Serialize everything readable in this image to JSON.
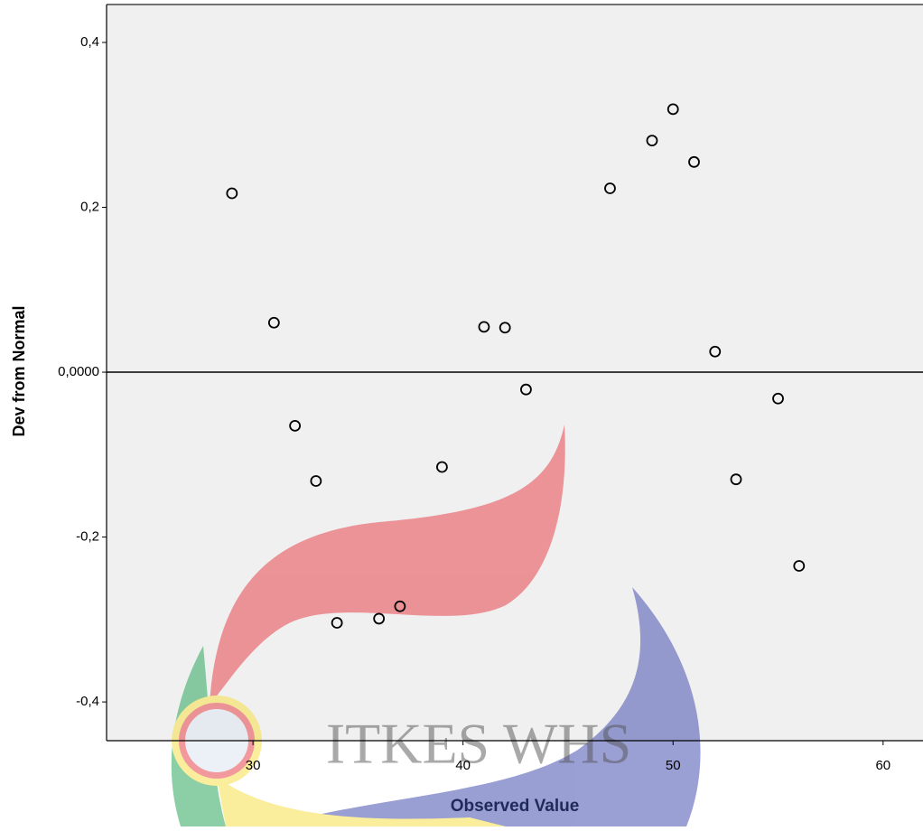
{
  "chart_data": {
    "type": "scatter",
    "xlabel": "Observed Value",
    "ylabel": "Dev from Normal",
    "watermark": "ITKES WHS",
    "x": [
      29,
      31,
      32,
      33,
      34,
      36,
      37,
      39,
      41,
      42,
      43,
      47,
      49,
      50,
      51,
      52,
      53,
      55,
      56
    ],
    "values": [
      0.217,
      0.06,
      -0.065,
      -0.132,
      -0.304,
      -0.299,
      -0.284,
      -0.115,
      0.055,
      0.054,
      -0.021,
      0.223,
      0.281,
      0.319,
      0.255,
      0.025,
      -0.13,
      -0.032,
      -0.235
    ],
    "color": "#000000",
    "xlim": [
      23.03,
      61.9
    ],
    "ylim": [
      -0.447,
      0.446
    ],
    "xticks": [
      30,
      40,
      50,
      60
    ],
    "yticks": [
      {
        "value": 0.4,
        "label": "0,4"
      },
      {
        "value": 0.2,
        "label": "0,2"
      },
      {
        "value": 0,
        "label": "0,0000"
      },
      {
        "value": -0.2,
        "label": "-0,2"
      },
      {
        "value": -0.4,
        "label": "-0,4"
      }
    ],
    "reference_line": 0
  }
}
